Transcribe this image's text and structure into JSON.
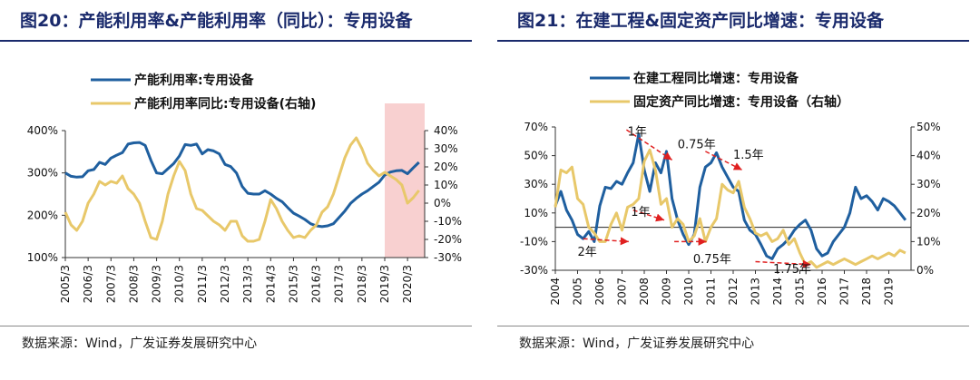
{
  "source_text": "数据来源：Wind，广发证券发展研究中心",
  "chart_data": [
    {
      "type": "line",
      "title": "图20：产能利用率&产能利用率（同比）：专用设备",
      "x_tick_labels": [
        "2005/3",
        "2006/3",
        "2007/3",
        "2008/3",
        "2009/3",
        "2010/3",
        "2011/3",
        "2012/3",
        "2013/3",
        "2014/3",
        "2015/3",
        "2016/3",
        "2017/3",
        "2018/3",
        "2019/3",
        "2020/3"
      ],
      "x_range": [
        2005.0,
        2020.75
      ],
      "y_left": {
        "min": 100,
        "max": 400,
        "ticks": [
          "100%",
          "200%",
          "300%",
          "400%"
        ]
      },
      "y_right": {
        "min": -30,
        "max": 40,
        "ticks": [
          "-30%",
          "-20%",
          "-10%",
          "0%",
          "10%",
          "20%",
          "30%",
          "40%"
        ]
      },
      "shaded_x_range": [
        2019.0,
        2020.75
      ],
      "shade_color": "#f8d0d0",
      "series": [
        {
          "name": "产能利用率:专用设备",
          "axis": "left",
          "color": "#1f5f9f",
          "x": [
            2005.0,
            2005.25,
            2005.5,
            2005.75,
            2006.0,
            2006.25,
            2006.5,
            2006.75,
            2007.0,
            2007.25,
            2007.5,
            2007.75,
            2008.0,
            2008.25,
            2008.5,
            2008.75,
            2009.0,
            2009.25,
            2009.5,
            2009.75,
            2010.0,
            2010.25,
            2010.5,
            2010.75,
            2011.0,
            2011.25,
            2011.5,
            2011.75,
            2012.0,
            2012.25,
            2012.5,
            2012.75,
            2013.0,
            2013.25,
            2013.5,
            2013.75,
            2014.0,
            2014.25,
            2014.5,
            2014.75,
            2015.0,
            2015.25,
            2015.5,
            2015.75,
            2016.0,
            2016.25,
            2016.5,
            2016.75,
            2017.0,
            2017.25,
            2017.5,
            2017.75,
            2018.0,
            2018.25,
            2018.5,
            2018.75,
            2019.0,
            2019.25,
            2019.5,
            2019.75,
            2020.0,
            2020.25,
            2020.5
          ],
          "y": [
            300,
            292,
            290,
            291,
            305,
            308,
            325,
            320,
            335,
            342,
            348,
            368,
            371,
            372,
            365,
            330,
            300,
            298,
            310,
            322,
            340,
            367,
            365,
            368,
            345,
            355,
            352,
            345,
            320,
            315,
            300,
            268,
            252,
            250,
            250,
            258,
            250,
            240,
            232,
            218,
            205,
            198,
            190,
            180,
            175,
            173,
            175,
            180,
            195,
            210,
            228,
            240,
            250,
            258,
            268,
            278,
            295,
            302,
            305,
            306,
            298,
            312,
            325
          ]
        },
        {
          "name": "产能利用率同比:专用设备(右轴)",
          "axis": "right",
          "color": "#e8c86a",
          "x": [
            2005.0,
            2005.25,
            2005.5,
            2005.75,
            2006.0,
            2006.25,
            2006.5,
            2006.75,
            2007.0,
            2007.25,
            2007.5,
            2007.75,
            2008.0,
            2008.25,
            2008.5,
            2008.75,
            2009.0,
            2009.25,
            2009.5,
            2009.75,
            2010.0,
            2010.25,
            2010.5,
            2010.75,
            2011.0,
            2011.25,
            2011.5,
            2011.75,
            2012.0,
            2012.25,
            2012.5,
            2012.75,
            2013.0,
            2013.25,
            2013.5,
            2013.75,
            2014.0,
            2014.25,
            2014.5,
            2014.75,
            2015.0,
            2015.25,
            2015.5,
            2015.75,
            2016.0,
            2016.25,
            2016.5,
            2016.75,
            2017.0,
            2017.25,
            2017.5,
            2017.75,
            2018.0,
            2018.25,
            2018.5,
            2018.75,
            2019.0,
            2019.25,
            2019.5,
            2019.75,
            2020.0,
            2020.25,
            2020.5
          ],
          "y": [
            -5,
            -12,
            -15,
            -10,
            0,
            5,
            12,
            10,
            12,
            11,
            15,
            8,
            5,
            0,
            -10,
            -19,
            -20,
            -10,
            5,
            15,
            23,
            18,
            5,
            -3,
            -4,
            -7,
            -10,
            -12,
            -15,
            -10,
            -10,
            -18,
            -21,
            -21,
            -20,
            -10,
            2,
            -3,
            -10,
            -15,
            -19,
            -18,
            -19,
            -15,
            -12,
            -5,
            -2,
            5,
            15,
            25,
            32,
            36,
            30,
            22,
            18,
            15,
            17,
            15,
            13,
            10,
            0,
            3,
            7
          ]
        }
      ]
    },
    {
      "type": "line",
      "title": "图21：在建工程&固定资产同比增速：专用设备",
      "x_tick_labels": [
        "2004",
        "2005",
        "2006",
        "2007",
        "2008",
        "2009",
        "2010",
        "2011",
        "2012",
        "2013",
        "2014",
        "2015",
        "2016",
        "2017",
        "2018",
        "2019"
      ],
      "x_range": [
        2004.0,
        2020.0
      ],
      "y_left": {
        "min": -30,
        "max": 70,
        "ticks": [
          "-30%",
          "-10%",
          "10%",
          "30%",
          "50%",
          "70%"
        ]
      },
      "y_right": {
        "min": 0,
        "max": 50,
        "ticks": [
          "0%",
          "10%",
          "20%",
          "30%",
          "40%",
          "50%"
        ]
      },
      "series": [
        {
          "name": "在建工程同比增速：专用设备",
          "axis": "left",
          "color": "#1f5f9f",
          "x": [
            2004.0,
            2004.25,
            2004.5,
            2004.75,
            2005.0,
            2005.25,
            2005.5,
            2005.75,
            2006.0,
            2006.25,
            2006.5,
            2006.75,
            2007.0,
            2007.25,
            2007.5,
            2007.75,
            2008.0,
            2008.25,
            2008.5,
            2008.75,
            2009.0,
            2009.25,
            2009.5,
            2009.75,
            2010.0,
            2010.25,
            2010.5,
            2010.75,
            2011.0,
            2011.25,
            2011.5,
            2011.75,
            2012.0,
            2012.25,
            2012.5,
            2012.75,
            2013.0,
            2013.25,
            2013.5,
            2013.75,
            2014.0,
            2014.25,
            2014.5,
            2014.75,
            2015.0,
            2015.25,
            2015.5,
            2015.75,
            2016.0,
            2016.25,
            2016.5,
            2016.75,
            2017.0,
            2017.25,
            2017.5,
            2017.75,
            2018.0,
            2018.25,
            2018.5,
            2018.75,
            2019.0,
            2019.25,
            2019.5,
            2019.75
          ],
          "y": [
            15,
            25,
            12,
            5,
            -5,
            -8,
            -3,
            -10,
            15,
            28,
            27,
            32,
            30,
            38,
            45,
            65,
            40,
            25,
            45,
            38,
            53,
            20,
            5,
            -5,
            -12,
            -5,
            28,
            42,
            45,
            52,
            42,
            35,
            28,
            25,
            5,
            -2,
            -5,
            -12,
            -20,
            -22,
            -15,
            -12,
            -8,
            -2,
            2,
            5,
            -2,
            -15,
            -20,
            -18,
            -10,
            -5,
            0,
            10,
            28,
            20,
            22,
            18,
            12,
            20,
            18,
            15,
            10,
            5
          ]
        },
        {
          "name": "固定资产同比增速：专用设备（右轴）",
          "axis": "right",
          "color": "#e8c86a",
          "x": [
            2004.0,
            2004.25,
            2004.5,
            2004.75,
            2005.0,
            2005.25,
            2005.5,
            2005.75,
            2006.0,
            2006.25,
            2006.5,
            2006.75,
            2007.0,
            2007.25,
            2007.5,
            2007.75,
            2008.0,
            2008.25,
            2008.5,
            2008.75,
            2009.0,
            2009.25,
            2009.5,
            2009.75,
            2010.0,
            2010.25,
            2010.5,
            2010.75,
            2011.0,
            2011.25,
            2011.5,
            2011.75,
            2012.0,
            2012.25,
            2012.5,
            2012.75,
            2013.0,
            2013.25,
            2013.5,
            2013.75,
            2014.0,
            2014.25,
            2014.5,
            2014.75,
            2015.0,
            2015.25,
            2015.5,
            2015.75,
            2016.0,
            2016.25,
            2016.5,
            2016.75,
            2017.0,
            2017.25,
            2017.5,
            2017.75,
            2018.0,
            2018.25,
            2018.5,
            2018.75,
            2019.0,
            2019.25,
            2019.5,
            2019.75
          ],
          "y": [
            22,
            35,
            34,
            36,
            25,
            23,
            15,
            13,
            10,
            10,
            16,
            20,
            14,
            22,
            23,
            25,
            38,
            42,
            35,
            23,
            25,
            15,
            18,
            16,
            10,
            12,
            18,
            10,
            15,
            18,
            30,
            28,
            27,
            31,
            22,
            18,
            13,
            12,
            13,
            10,
            11,
            14,
            9,
            11,
            6,
            2,
            3,
            1,
            2,
            3,
            2,
            3,
            4,
            3,
            2,
            3,
            4,
            5,
            4,
            5,
            6,
            5,
            7,
            6
          ]
        }
      ],
      "annotations": [
        {
          "text": "1年",
          "x": 2007.25,
          "y": 64
        },
        {
          "text": "0.75年",
          "x": 2009.5,
          "y": 55
        },
        {
          "text": "1.5年",
          "x": 2012.0,
          "y": 48
        },
        {
          "text": "1年",
          "x": 2007.4,
          "y": 8
        },
        {
          "text": "2年",
          "x": 2005.0,
          "y": -20
        },
        {
          "text": "0.75年",
          "x": 2010.2,
          "y": -25
        },
        {
          "text": "1.75年",
          "x": 2013.8,
          "y": -32
        }
      ],
      "arrows": [
        {
          "from": [
            2007.2,
            68
          ],
          "to": [
            2009.25,
            47
          ]
        },
        {
          "from": [
            2010.75,
            53
          ],
          "to": [
            2012.4,
            40
          ]
        },
        {
          "from": [
            2007.5,
            12
          ],
          "to": [
            2008.9,
            5
          ]
        },
        {
          "from": [
            2005.25,
            -8
          ],
          "to": [
            2007.3,
            -10
          ]
        },
        {
          "from": [
            2009.35,
            -10
          ],
          "to": [
            2010.8,
            -10
          ]
        },
        {
          "from": [
            2013.0,
            -24
          ],
          "to": [
            2015.5,
            -26
          ]
        }
      ]
    }
  ]
}
